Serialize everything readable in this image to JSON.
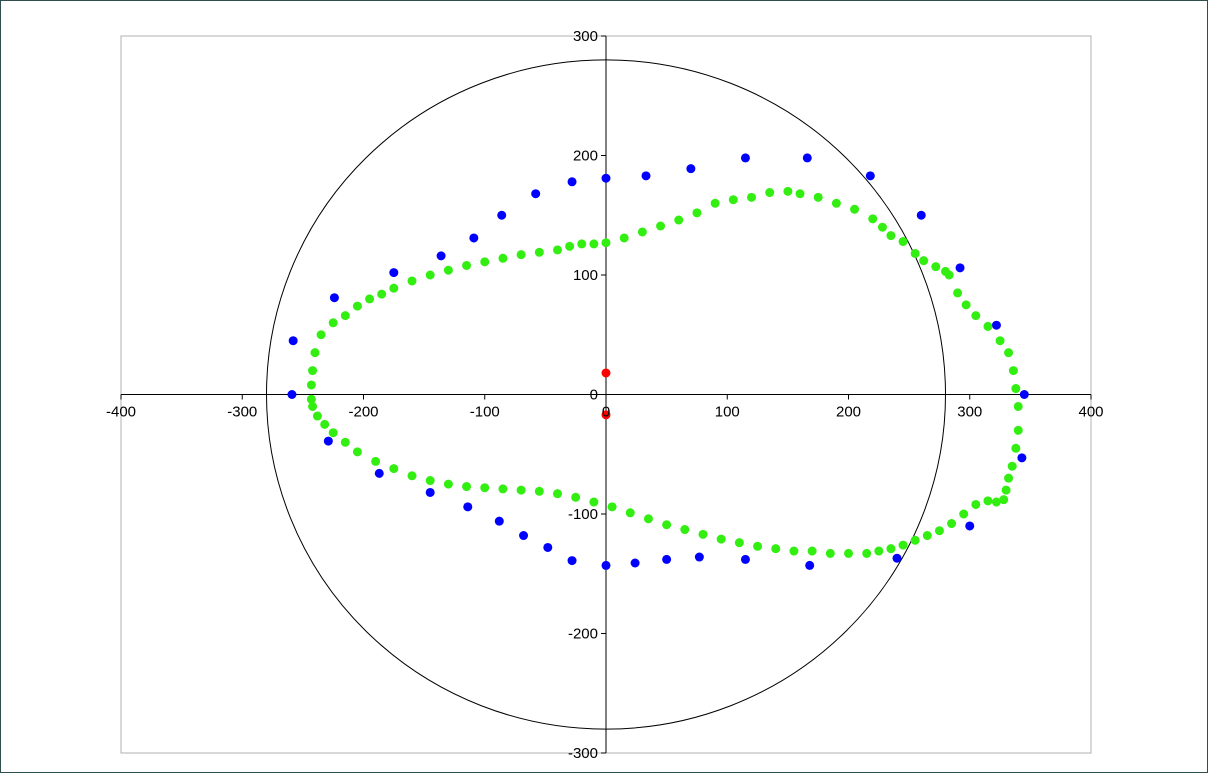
{
  "chart_data": {
    "type": "scatter",
    "title": "",
    "xlabel": "",
    "ylabel": "",
    "xlim": [
      -400,
      400
    ],
    "ylim": [
      -300,
      300
    ],
    "x_ticks": [
      -400,
      -300,
      -200,
      -100,
      0,
      100,
      200,
      300,
      400
    ],
    "y_ticks": [
      -300,
      -200,
      -100,
      0,
      100,
      200,
      300
    ],
    "x_tick_labels": [
      "-400",
      "-300",
      "-200",
      "-100",
      "0",
      "100",
      "200",
      "300",
      "400"
    ],
    "y_tick_labels": [
      "-300",
      "-200",
      "-100",
      "0",
      "100",
      "200",
      "300"
    ],
    "grid": false,
    "legend": "none",
    "reference_circle": {
      "cx": 0,
      "cy": 0,
      "r": 280,
      "color": "#000000"
    },
    "series": [
      {
        "color": "#0000ff",
        "points": [
          [
            345,
            0
          ],
          [
            343,
            -53
          ],
          [
            322,
            58
          ],
          [
            300,
            -110
          ],
          [
            292,
            106
          ],
          [
            260,
            150
          ],
          [
            240,
            -137
          ],
          [
            218,
            183
          ],
          [
            168,
            -143
          ],
          [
            166,
            198
          ],
          [
            115,
            198
          ],
          [
            115,
            -138
          ],
          [
            70,
            189
          ],
          [
            77,
            -136
          ],
          [
            33,
            183
          ],
          [
            50,
            -138
          ],
          [
            0,
            181
          ],
          [
            24,
            -141
          ],
          [
            0,
            -143
          ],
          [
            -28,
            178
          ],
          [
            -28,
            -139
          ],
          [
            -58,
            168
          ],
          [
            -48,
            -128
          ],
          [
            -86,
            150
          ],
          [
            -68,
            -118
          ],
          [
            -109,
            131
          ],
          [
            -88,
            -106
          ],
          [
            -136,
            116
          ],
          [
            -114,
            -94
          ],
          [
            -175,
            102
          ],
          [
            -145,
            -82
          ],
          [
            -187,
            -66
          ],
          [
            -224,
            81
          ],
          [
            -229,
            -39
          ],
          [
            -258,
            45
          ],
          [
            -259,
            0
          ]
        ]
      },
      {
        "color": "#33ee11",
        "points": [
          [
            -243,
            8
          ],
          [
            -242,
            20
          ],
          [
            -240,
            35
          ],
          [
            -235,
            50
          ],
          [
            -225,
            60
          ],
          [
            -215,
            66
          ],
          [
            -205,
            74
          ],
          [
            -195,
            80
          ],
          [
            -185,
            84
          ],
          [
            -175,
            89
          ],
          [
            -160,
            95
          ],
          [
            -145,
            100
          ],
          [
            -130,
            104
          ],
          [
            -115,
            108
          ],
          [
            -100,
            111
          ],
          [
            -85,
            114
          ],
          [
            -70,
            117
          ],
          [
            -55,
            119
          ],
          [
            -40,
            121
          ],
          [
            -30,
            124
          ],
          [
            -20,
            126
          ],
          [
            -10,
            126
          ],
          [
            0,
            127
          ],
          [
            15,
            131
          ],
          [
            30,
            136
          ],
          [
            45,
            141
          ],
          [
            60,
            146
          ],
          [
            75,
            152
          ],
          [
            90,
            160
          ],
          [
            105,
            163
          ],
          [
            120,
            165
          ],
          [
            135,
            169
          ],
          [
            150,
            170
          ],
          [
            160,
            168
          ],
          [
            175,
            165
          ],
          [
            190,
            160
          ],
          [
            205,
            155
          ],
          [
            220,
            147
          ],
          [
            228,
            140
          ],
          [
            235,
            133
          ],
          [
            245,
            128
          ],
          [
            255,
            118
          ],
          [
            262,
            112
          ],
          [
            272,
            107
          ],
          [
            280,
            103
          ],
          [
            283,
            100
          ],
          [
            290,
            85
          ],
          [
            297,
            75
          ],
          [
            305,
            66
          ],
          [
            315,
            57
          ],
          [
            325,
            45
          ],
          [
            332,
            35
          ],
          [
            336,
            20
          ],
          [
            338,
            5
          ],
          [
            340,
            -10
          ],
          [
            340,
            -30
          ],
          [
            338,
            -45
          ],
          [
            335,
            -60
          ],
          [
            332,
            -70
          ],
          [
            330,
            -80
          ],
          [
            328,
            -88
          ],
          [
            322,
            -90
          ],
          [
            315,
            -89
          ],
          [
            305,
            -92
          ],
          [
            295,
            -100
          ],
          [
            285,
            -108
          ],
          [
            275,
            -114
          ],
          [
            265,
            -118
          ],
          [
            255,
            -122
          ],
          [
            245,
            -126
          ],
          [
            235,
            -129
          ],
          [
            225,
            -131
          ],
          [
            215,
            -133
          ],
          [
            200,
            -133
          ],
          [
            185,
            -133
          ],
          [
            170,
            -131
          ],
          [
            155,
            -131
          ],
          [
            140,
            -129
          ],
          [
            125,
            -127
          ],
          [
            110,
            -124
          ],
          [
            95,
            -121
          ],
          [
            80,
            -117
          ],
          [
            65,
            -113
          ],
          [
            50,
            -109
          ],
          [
            35,
            -104
          ],
          [
            20,
            -99
          ],
          [
            5,
            -94
          ],
          [
            -10,
            -90
          ],
          [
            -25,
            -86
          ],
          [
            -40,
            -83
          ],
          [
            -55,
            -81
          ],
          [
            -70,
            -80
          ],
          [
            -85,
            -79
          ],
          [
            -100,
            -78
          ],
          [
            -115,
            -77
          ],
          [
            -130,
            -75
          ],
          [
            -145,
            -72
          ],
          [
            -160,
            -68
          ],
          [
            -175,
            -62
          ],
          [
            -190,
            -56
          ],
          [
            -205,
            -48
          ],
          [
            -215,
            -40
          ],
          [
            -225,
            -32
          ],
          [
            -232,
            -25
          ],
          [
            -238,
            -18
          ],
          [
            -242,
            -10
          ],
          [
            -243,
            -4
          ]
        ]
      },
      {
        "color": "#ff0000",
        "points": [
          [
            0,
            18
          ],
          [
            0,
            -17
          ]
        ]
      }
    ]
  }
}
